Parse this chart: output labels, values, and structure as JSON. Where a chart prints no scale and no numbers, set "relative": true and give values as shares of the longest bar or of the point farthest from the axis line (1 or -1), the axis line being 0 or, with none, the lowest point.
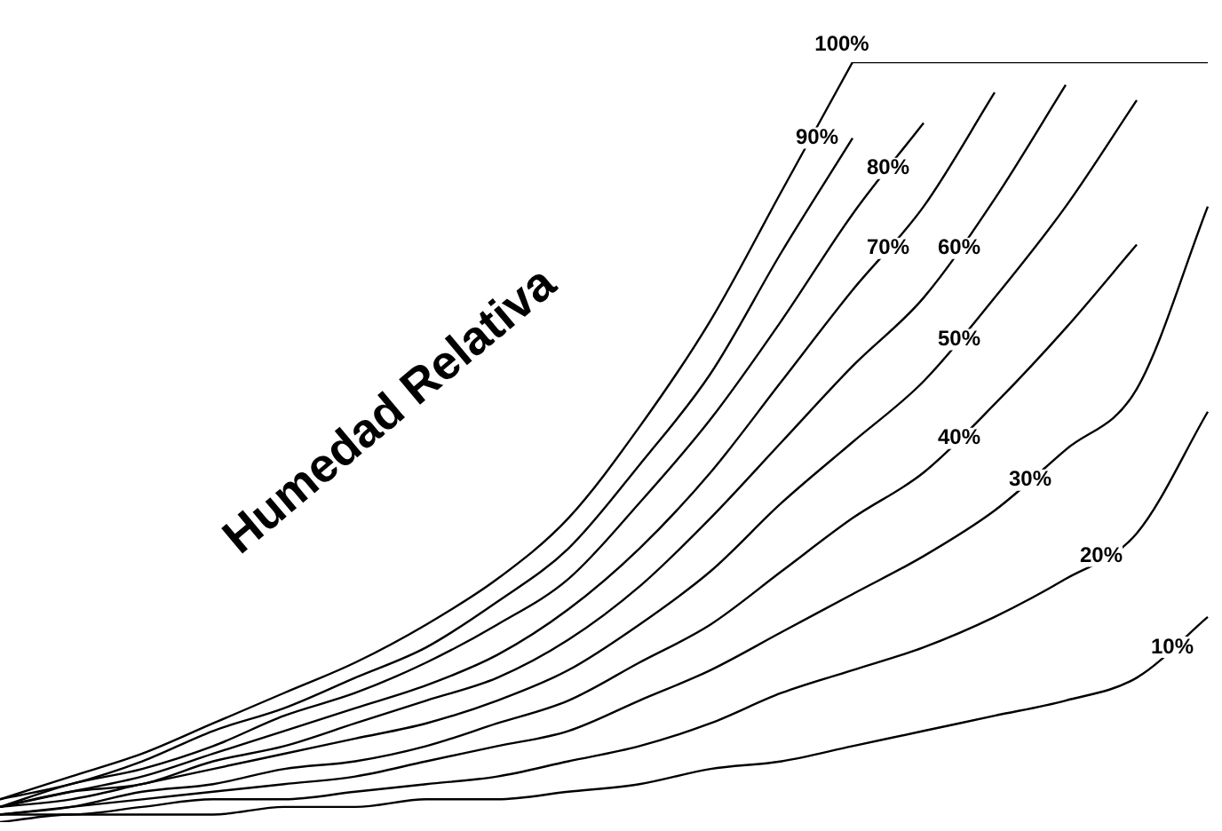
{
  "chart_data": {
    "type": "line",
    "relative": true,
    "legend": false,
    "marker": "none",
    "line_style": "solid",
    "annotations": [
      "Humedad Relativa"
    ],
    "categories": [
      null,
      null,
      null,
      null,
      null,
      null,
      null,
      null,
      null,
      null,
      null,
      null,
      null,
      null,
      null,
      null,
      null,
      null
    ],
    "series": [
      {
        "name": "100%",
        "color": "#000000",
        "values": [
          0.03,
          0.06,
          0.09,
          0.13,
          0.17,
          0.21,
          0.26,
          0.32,
          0.4,
          0.52,
          0.66,
          0.83,
          1.0,
          null,
          null,
          null,
          null,
          null
        ]
      },
      {
        "name": "90%",
        "color": "#000000",
        "values": [
          0.03,
          0.05,
          0.08,
          0.12,
          0.15,
          0.19,
          0.23,
          0.29,
          0.36,
          0.47,
          0.59,
          0.75,
          0.9,
          null,
          null,
          null,
          null,
          null
        ]
      },
      {
        "name": "80%",
        "color": "#000000",
        "values": [
          0.02,
          0.05,
          0.07,
          0.1,
          0.14,
          0.17,
          0.21,
          0.26,
          0.32,
          0.42,
          0.53,
          0.66,
          0.8,
          0.92,
          null,
          null,
          null,
          null
        ]
      },
      {
        "name": "70%",
        "color": "#000000",
        "values": [
          0.02,
          0.04,
          0.06,
          0.09,
          0.12,
          0.15,
          0.18,
          0.22,
          0.28,
          0.36,
          0.46,
          0.58,
          0.7,
          0.81,
          0.96,
          null,
          null,
          null
        ]
      },
      {
        "name": "60%",
        "color": "#000000",
        "values": [
          0.02,
          0.04,
          0.05,
          0.08,
          0.1,
          0.13,
          0.16,
          0.19,
          0.24,
          0.31,
          0.4,
          0.5,
          0.6,
          0.69,
          0.82,
          0.97,
          null,
          null
        ]
      },
      {
        "name": "50%",
        "color": "#000000",
        "values": [
          0.02,
          0.03,
          0.05,
          0.07,
          0.09,
          0.11,
          0.13,
          0.16,
          0.2,
          0.26,
          0.33,
          0.42,
          0.5,
          0.58,
          0.69,
          0.81,
          0.95,
          null
        ]
      },
      {
        "name": "40%",
        "color": "#000000",
        "values": [
          0.01,
          0.02,
          0.04,
          0.05,
          0.07,
          0.08,
          0.1,
          0.13,
          0.16,
          0.21,
          0.26,
          0.33,
          0.4,
          0.46,
          0.55,
          0.65,
          0.76,
          null
        ]
      },
      {
        "name": "30%",
        "color": "#000000",
        "values": [
          0.01,
          0.02,
          0.03,
          0.04,
          0.05,
          0.06,
          0.08,
          0.1,
          0.12,
          0.16,
          0.2,
          0.25,
          0.3,
          0.35,
          0.41,
          0.49,
          0.57,
          0.81
        ]
      },
      {
        "name": "20%",
        "color": "#000000",
        "values": [
          0.01,
          0.01,
          0.02,
          0.03,
          0.03,
          0.04,
          0.05,
          0.06,
          0.08,
          0.1,
          0.13,
          0.17,
          0.2,
          0.23,
          0.27,
          0.32,
          0.38,
          0.54
        ]
      },
      {
        "name": "10%",
        "color": "#000000",
        "values": [
          0,
          0.01,
          0.01,
          0.01,
          0.02,
          0.02,
          0.03,
          0.03,
          0.04,
          0.05,
          0.07,
          0.08,
          0.1,
          0.12,
          0.14,
          0.16,
          0.19,
          0.27
        ]
      },
      {
        "color": "#000000",
        "values": [
          null,
          null,
          null,
          null,
          null,
          null,
          null,
          null,
          null,
          null,
          null,
          null,
          1.0,
          1.0,
          1.0,
          1.0,
          1.0,
          1.0
        ]
      }
    ]
  }
}
